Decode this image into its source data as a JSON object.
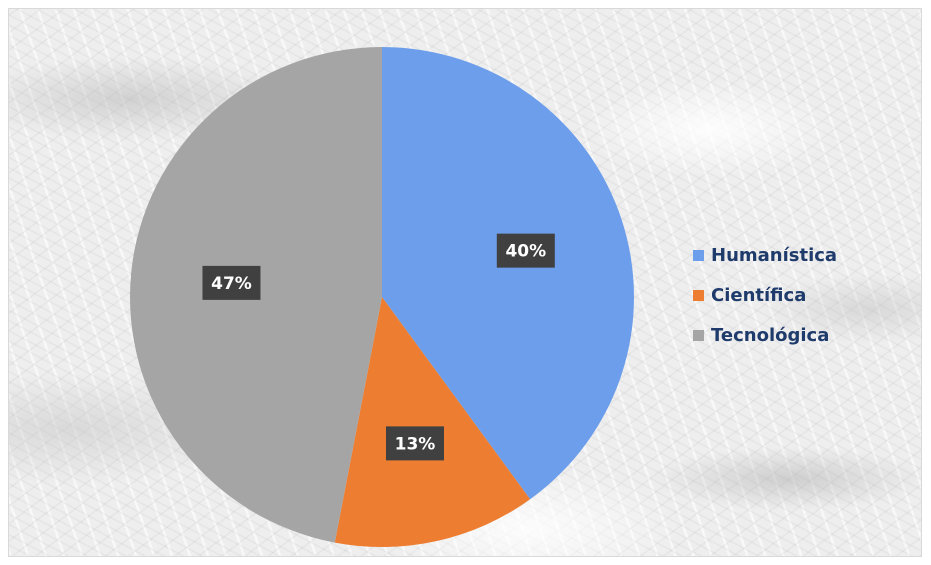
{
  "chart_data": {
    "type": "pie",
    "categories": [
      "Humanística",
      "Científica",
      "Tecnológica"
    ],
    "values": [
      40,
      13,
      47
    ],
    "data_labels": [
      "40%",
      "13%",
      "47%"
    ],
    "colors": [
      "#6d9eeb",
      "#ed7d31",
      "#a5a5a5"
    ],
    "start_angle_deg": 0,
    "direction": "clockwise",
    "legend_position": "right",
    "title": ""
  }
}
